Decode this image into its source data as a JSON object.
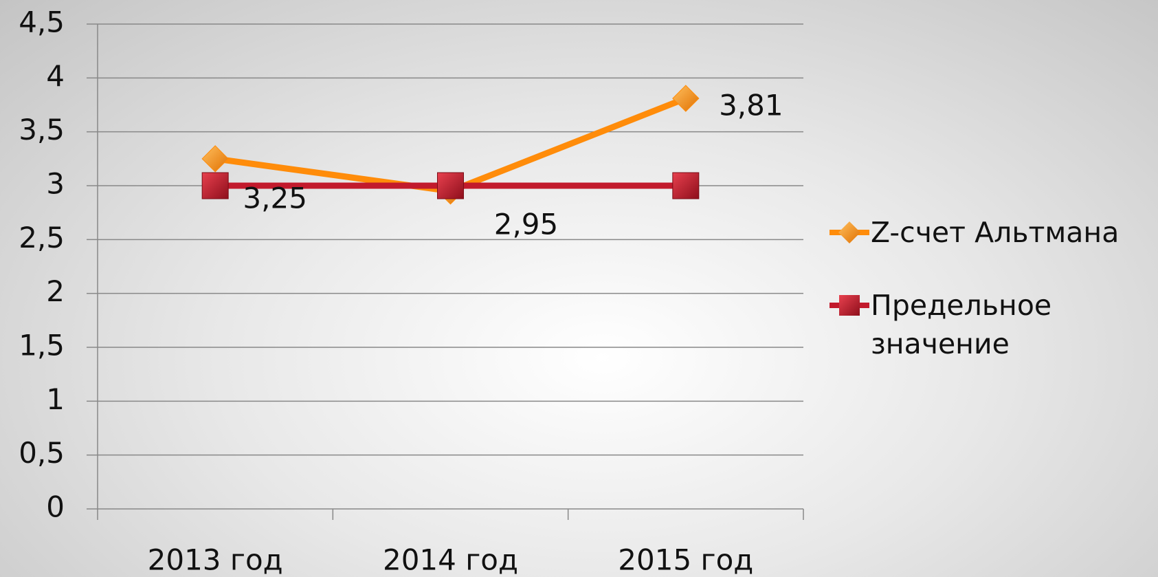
{
  "chart_data": {
    "type": "line",
    "categories": [
      "2013 год",
      "2014 год",
      "2015 год"
    ],
    "series": [
      {
        "name": "Z-счет Альтмана",
        "color": "#ff8c0a",
        "values": [
          3.25,
          2.95,
          3.81
        ],
        "value_labels": [
          "3,25",
          "2,95",
          "3,81"
        ]
      },
      {
        "name": "Предельное значение",
        "color": "#c21a2c",
        "values": [
          3,
          3,
          3
        ]
      }
    ],
    "ylim": [
      0,
      4.5
    ],
    "yticks": [
      0,
      {
        "value": 0.5,
        "label": "0,5"
      },
      1,
      {
        "value": 1.5,
        "label": "1,5"
      },
      2,
      {
        "value": 2.5,
        "label": "2,5"
      },
      3,
      {
        "value": 3.5,
        "label": "3,5"
      },
      4,
      {
        "value": 4.5,
        "label": "4,5"
      }
    ],
    "grid": true,
    "legend": "right"
  }
}
